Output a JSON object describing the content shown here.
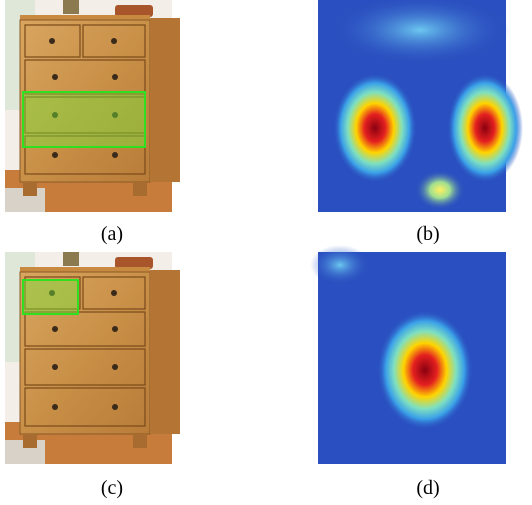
{
  "panels": [
    {
      "label": "(a)"
    },
    {
      "label": "(b)"
    },
    {
      "label": "(c)"
    },
    {
      "label": "(d)"
    }
  ]
}
